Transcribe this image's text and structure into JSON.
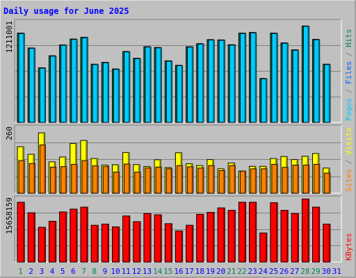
{
  "title": "Daily usage for June 2025",
  "colors": {
    "page_bg": "#c0c0c0",
    "frame_light": "#ffffff",
    "frame_dark": "#808080",
    "title_text": "#0000ff",
    "pages": "#00ccff",
    "files": "#0066ff",
    "hits": "#00805c",
    "visits": "#ffff00",
    "sites": "#ff8000",
    "kbytes": "#ff0000",
    "gridline": "#808080",
    "weekday_label": "#0000ff",
    "weekend_label": "#00805c"
  },
  "panels": [
    {
      "id": "hits",
      "max_label": "1211001",
      "legend": [
        {
          "text": "Pages",
          "color_key": "pages"
        },
        {
          "text": " / ",
          "color_key": "frame_dark"
        },
        {
          "text": "Files",
          "color_key": "files"
        },
        {
          "text": " / ",
          "color_key": "frame_dark"
        },
        {
          "text": "Hits",
          "color_key": "hits"
        }
      ]
    },
    {
      "id": "visits",
      "max_label": "260",
      "legend": [
        {
          "text": "Sites",
          "color_key": "sites"
        },
        {
          "text": " / ",
          "color_key": "frame_dark"
        },
        {
          "text": "Visits",
          "color_key": "visits"
        }
      ]
    },
    {
      "id": "kbytes",
      "max_label": "15658159",
      "legend": [
        {
          "text": "KBytes",
          "color_key": "kbytes"
        }
      ]
    }
  ],
  "chart_data": [
    {
      "type": "bar",
      "panel": "hits",
      "ylim": [
        0,
        1211001
      ],
      "categories": [
        "1",
        "2",
        "3",
        "4",
        "5",
        "6",
        "7",
        "8",
        "9",
        "10",
        "11",
        "12",
        "13",
        "14",
        "15",
        "16",
        "17",
        "18",
        "19",
        "20",
        "21",
        "22",
        "23",
        "24",
        "25",
        "26",
        "27",
        "28",
        "29",
        "30",
        "31"
      ],
      "series": [
        {
          "name": "Hits",
          "color_key": "hits",
          "values": [
            1080000,
            900000,
            660000,
            806000,
            937000,
            1008000,
            1029000,
            704000,
            726000,
            646000,
            857000,
            775000,
            916000,
            906000,
            744000,
            690000,
            915000,
            952000,
            1001000,
            997000,
            939000,
            1080000,
            1087000,
            531000,
            1080000,
            961000,
            877000,
            1166000,
            1004000,
            704000,
            0
          ]
        },
        {
          "name": "Pages",
          "color_key": "pages",
          "values": [
            1075000,
            895000,
            655000,
            801000,
            932000,
            1003000,
            1024000,
            699000,
            721000,
            641000,
            852000,
            770000,
            911000,
            901000,
            739000,
            685000,
            910000,
            947000,
            996000,
            992000,
            934000,
            1075000,
            1082000,
            526000,
            1075000,
            956000,
            872000,
            1161000,
            999000,
            699000,
            0
          ]
        }
      ]
    },
    {
      "type": "bar",
      "panel": "visits",
      "ylim": [
        0,
        260
      ],
      "categories": [
        "1",
        "2",
        "3",
        "4",
        "5",
        "6",
        "7",
        "8",
        "9",
        "10",
        "11",
        "12",
        "13",
        "14",
        "15",
        "16",
        "17",
        "18",
        "19",
        "20",
        "21",
        "22",
        "23",
        "24",
        "25",
        "26",
        "27",
        "28",
        "29",
        "30",
        "31"
      ],
      "series": [
        {
          "name": "Visits",
          "color_key": "visits",
          "values": [
            185,
            155,
            240,
            125,
            144,
            198,
            210,
            138,
            112,
            113,
            162,
            114,
            106,
            133,
            102,
            161,
            117,
            110,
            134,
            97,
            120,
            88,
            107,
            107,
            138,
            146,
            134,
            147,
            158,
            100,
            0
          ]
        },
        {
          "name": "Sites",
          "color_key": "sites",
          "values": [
            130,
            118,
            192,
            104,
            106,
            115,
            130,
            109,
            106,
            84,
            116,
            84,
            100,
            104,
            97,
            110,
            105,
            100,
            110,
            90,
            110,
            88,
            97,
            97,
            115,
            103,
            112,
            112,
            115,
            80,
            0
          ]
        }
      ]
    },
    {
      "type": "bar",
      "panel": "kbytes",
      "ylim": [
        0,
        15658159
      ],
      "categories": [
        "1",
        "2",
        "3",
        "4",
        "5",
        "6",
        "7",
        "8",
        "9",
        "10",
        "11",
        "12",
        "13",
        "14",
        "15",
        "16",
        "17",
        "18",
        "19",
        "20",
        "21",
        "22",
        "23",
        "24",
        "25",
        "26",
        "27",
        "28",
        "29",
        "30",
        "31"
      ],
      "series": [
        {
          "name": "KBytes",
          "color_key": "kbytes",
          "values": [
            14800000,
            12200000,
            8600000,
            10100000,
            12400000,
            13100000,
            13600000,
            9100000,
            9400000,
            8700000,
            11400000,
            10000000,
            12000000,
            11700000,
            9500000,
            7700000,
            9100000,
            11800000,
            12300000,
            13400000,
            12800000,
            14800000,
            14800000,
            7200000,
            14700000,
            12800000,
            12000000,
            15600000,
            13600000,
            9400000,
            0
          ]
        }
      ]
    }
  ]
}
